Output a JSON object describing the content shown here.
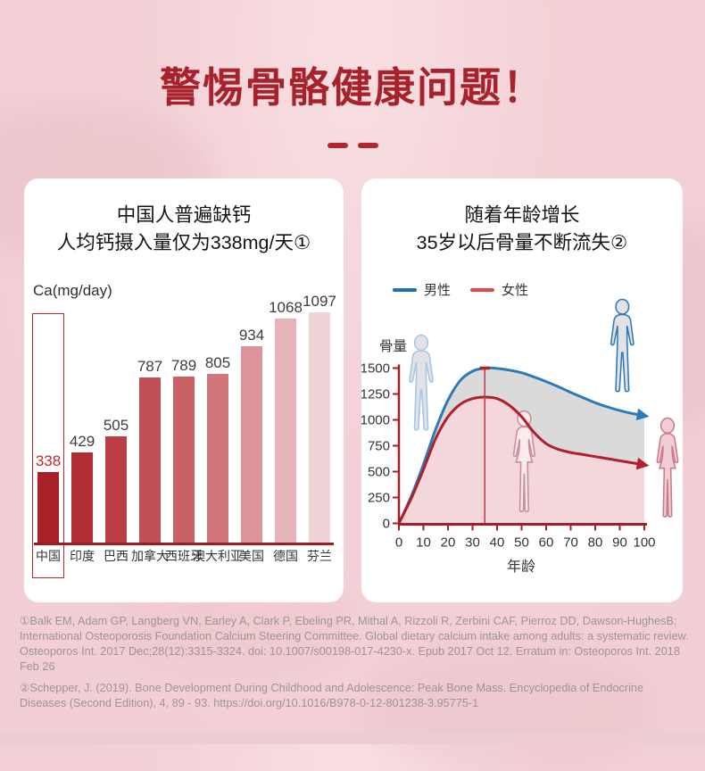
{
  "page": {
    "title": "警惕骨骼健康问题！",
    "accent_color": "#a7222a"
  },
  "left_card": {
    "heading_line1": "中国人普遍缺钙",
    "heading_line2": "人均钙摄入量仅为338mg/天①",
    "chart_data": {
      "type": "bar",
      "ylabel": "Ca(mg/day)",
      "categories": [
        "中国",
        "印度",
        "巴西",
        "加拿大",
        "西班牙",
        "澳大利亚",
        "美国",
        "德国",
        "芬兰"
      ],
      "values": [
        338,
        429,
        505,
        787,
        789,
        805,
        934,
        1068,
        1097
      ],
      "bar_colors": [
        "#a82127",
        "#b12d33",
        "#ba3e44",
        "#c24f55",
        "#ca6167",
        "#d2767c",
        "#db949a",
        "#e5b4b8",
        "#efd3d6"
      ],
      "highlight_index": 0,
      "highlight_color": "#c0272d",
      "value_label_color": "#3d3d3d",
      "axis_color": "#9d1b23",
      "ylim": [
        0,
        1097
      ]
    }
  },
  "right_card": {
    "heading_line1": "随着年龄增长",
    "heading_line2": "35岁以后骨量不断流失②",
    "chart_data": {
      "type": "line",
      "xlabel": "年龄",
      "ylabel": "骨量",
      "x_ticks": [
        0,
        10,
        20,
        30,
        40,
        50,
        60,
        70,
        80,
        90,
        100
      ],
      "y_ticks": [
        0,
        250,
        500,
        750,
        1000,
        1250,
        1500
      ],
      "xlim": [
        0,
        100
      ],
      "ylim": [
        0,
        1500
      ],
      "axis_color": "#a41d28",
      "peak_marker_age": 35,
      "legend_position": "top-left",
      "series": [
        {
          "name": "男性",
          "color": "#2d7ab9",
          "legend_color": "#1e72b4",
          "x": [
            0,
            5,
            10,
            15,
            20,
            25,
            30,
            35,
            40,
            45,
            50,
            55,
            60,
            65,
            70,
            75,
            80,
            85,
            90,
            95,
            100
          ],
          "y": [
            0,
            260,
            570,
            910,
            1190,
            1380,
            1470,
            1500,
            1497,
            1480,
            1455,
            1415,
            1370,
            1320,
            1265,
            1215,
            1165,
            1125,
            1090,
            1062,
            1040
          ]
        },
        {
          "name": "女性",
          "color": "#b01f2b",
          "legend_color": "#e8473f",
          "x": [
            0,
            5,
            10,
            15,
            20,
            25,
            30,
            35,
            40,
            45,
            50,
            55,
            60,
            65,
            70,
            75,
            80,
            85,
            90,
            95,
            100
          ],
          "y": [
            0,
            240,
            520,
            820,
            1030,
            1150,
            1205,
            1220,
            1205,
            1140,
            1030,
            880,
            770,
            715,
            685,
            665,
            645,
            625,
            605,
            585,
            565
          ]
        }
      ],
      "fill_between_color": "#dadada",
      "fill_under_female_color": "#f4d7da"
    }
  },
  "footnotes": {
    "note1": "①Balk EM, Adam GP, Langberg VN, Earley A, Clark P, Ebeling PR, Mithal A, Rizzoli R, Zerbini CAF, Pierroz DD, Dawson-HughesB; International Osteoporosis Foundation Calcium Steering Committee. Global dietary calcium intake among adults: a systematic review. Osteoporos Int. 2017 Dec;28(12):3315-3324. doi: 10.1007/s00198-017-4230-x. Epub 2017 Oct 12. Erratum in: Osteoporos Int. 2018 Feb 26",
    "note2": "②Schepper, J. (2019). Bone Development During Childhood and Adolescence: Peak Bone Mass. Encyclopedia of Endocrine Diseases (Second Edition), 4, 89 - 93. https://doi.org/10.1016/B978-0-12-801238-3.95775-1"
  }
}
